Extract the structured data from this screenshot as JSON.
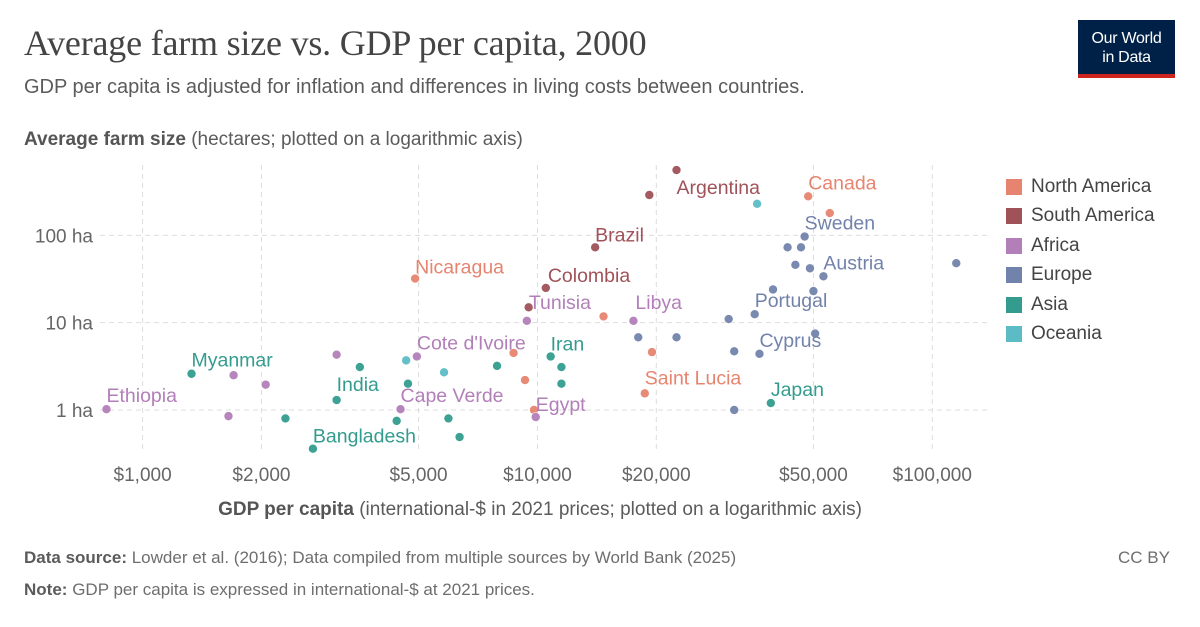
{
  "header": {
    "title": "Average farm size vs. GDP per capita, 2000",
    "subtitle": "GDP per capita is adjusted for inflation and differences in living costs between countries.",
    "logo_line1": "Our World",
    "logo_line2": "in Data"
  },
  "footer": {
    "source_label": "Data source:",
    "source_text": "Lowder et al. (2016); Data compiled from multiple sources by World Bank (2025)",
    "note_label": "Note:",
    "note_text": "GDP per capita is expressed in international-$ at 2021 prices.",
    "license": "CC BY"
  },
  "chart_data": {
    "type": "scatter",
    "title": "Average farm size vs. GDP per capita, 2000",
    "ylabel_bold": "Average farm size",
    "ylabel_rest": " (hectares; plotted on a logarithmic axis)",
    "xlabel_bold": "GDP per capita",
    "xlabel_rest": " (international-$ in 2021 prices; plotted on a logarithmic axis)",
    "x_scale": "log",
    "y_scale": "log",
    "xlim": [
      780,
      140000
    ],
    "ylim": [
      0.33,
      640
    ],
    "x_ticks": [
      {
        "value": 1000,
        "label": "$1,000"
      },
      {
        "value": 2000,
        "label": "$2,000"
      },
      {
        "value": 5000,
        "label": "$5,000"
      },
      {
        "value": 10000,
        "label": "$10,000"
      },
      {
        "value": 20000,
        "label": "$20,000"
      },
      {
        "value": 50000,
        "label": "$50,000"
      },
      {
        "value": 100000,
        "label": "$100,000"
      }
    ],
    "y_ticks": [
      {
        "value": 1,
        "label": "1 ha"
      },
      {
        "value": 10,
        "label": "10 ha"
      },
      {
        "value": 100,
        "label": "100 ha"
      }
    ],
    "grid": true,
    "legend_position": "right",
    "regions": [
      {
        "name": "North America",
        "color": "#e6846f"
      },
      {
        "name": "South America",
        "color": "#a05259"
      },
      {
        "name": "Africa",
        "color": "#b27fb9"
      },
      {
        "name": "Europe",
        "color": "#7283ab"
      },
      {
        "name": "Asia",
        "color": "#339c8e"
      },
      {
        "name": "Oceania",
        "color": "#5cbcc6"
      }
    ],
    "points": [
      {
        "label": "Argentina",
        "region": "South America",
        "x": 22500,
        "y": 560,
        "labeled": true,
        "anchor": "start",
        "dx": 0,
        "dy": 24
      },
      {
        "label": "",
        "region": "South America",
        "x": 19200,
        "y": 290
      },
      {
        "label": "Brazil",
        "region": "South America",
        "x": 14000,
        "y": 73,
        "labeled": true,
        "anchor": "start",
        "dx": 0,
        "dy": -6
      },
      {
        "label": "Colombia",
        "region": "South America",
        "x": 10500,
        "y": 25,
        "labeled": true,
        "anchor": "start",
        "dx": 2,
        "dy": -6
      },
      {
        "label": "",
        "region": "South America",
        "x": 9500,
        "y": 15
      },
      {
        "label": "Canada",
        "region": "North America",
        "x": 48500,
        "y": 280,
        "labeled": true,
        "anchor": "start",
        "dx": 0,
        "dy": -7
      },
      {
        "label": "",
        "region": "North America",
        "x": 55000,
        "y": 180
      },
      {
        "label": "Nicaragua",
        "region": "North America",
        "x": 4900,
        "y": 32,
        "labeled": true,
        "anchor": "start",
        "dx": 0,
        "dy": -5
      },
      {
        "label": "",
        "region": "North America",
        "x": 14700,
        "y": 11.8
      },
      {
        "label": "",
        "region": "North America",
        "x": 8700,
        "y": 4.5
      },
      {
        "label": "",
        "region": "North America",
        "x": 9300,
        "y": 2.2
      },
      {
        "label": "",
        "region": "North America",
        "x": 9800,
        "y": 1
      },
      {
        "label": "",
        "region": "North America",
        "x": 19500,
        "y": 4.6
      },
      {
        "label": "Saint Lucia",
        "region": "North America",
        "x": 18700,
        "y": 1.55,
        "labeled": true,
        "anchor": "start",
        "dx": 0,
        "dy": -9
      },
      {
        "label": "Sweden",
        "region": "Europe",
        "x": 47500,
        "y": 97,
        "labeled": true,
        "anchor": "start",
        "dx": 0,
        "dy": -7
      },
      {
        "label": "",
        "region": "Europe",
        "x": 43000,
        "y": 73
      },
      {
        "label": "",
        "region": "Europe",
        "x": 46500,
        "y": 73
      },
      {
        "label": "",
        "region": "Europe",
        "x": 45000,
        "y": 46
      },
      {
        "label": "",
        "region": "Europe",
        "x": 49000,
        "y": 42
      },
      {
        "label": "Austria",
        "region": "Europe",
        "x": 53000,
        "y": 34,
        "labeled": true,
        "anchor": "start",
        "dx": 0,
        "dy": -7
      },
      {
        "label": "",
        "region": "Europe",
        "x": 115000,
        "y": 48
      },
      {
        "label": "",
        "region": "Europe",
        "x": 39500,
        "y": 24
      },
      {
        "label": "",
        "region": "Europe",
        "x": 50000,
        "y": 23
      },
      {
        "label": "Portugal",
        "region": "Europe",
        "x": 35500,
        "y": 12.5,
        "labeled": true,
        "anchor": "start",
        "dx": 0,
        "dy": -7
      },
      {
        "label": "",
        "region": "Europe",
        "x": 30500,
        "y": 11
      },
      {
        "label": "",
        "region": "Europe",
        "x": 50500,
        "y": 7.5
      },
      {
        "label": "",
        "region": "Europe",
        "x": 18000,
        "y": 6.8
      },
      {
        "label": "",
        "region": "Europe",
        "x": 22500,
        "y": 6.8
      },
      {
        "label": "",
        "region": "Europe",
        "x": 31500,
        "y": 4.7
      },
      {
        "label": "Cyprus",
        "region": "Europe",
        "x": 36500,
        "y": 4.4,
        "labeled": true,
        "anchor": "start",
        "dx": 0,
        "dy": -7
      },
      {
        "label": "",
        "region": "Europe",
        "x": 31500,
        "y": 1
      },
      {
        "label": "",
        "region": "Oceania",
        "x": 36000,
        "y": 230
      },
      {
        "label": "",
        "region": "Oceania",
        "x": 4650,
        "y": 3.7
      },
      {
        "label": "",
        "region": "Oceania",
        "x": 5800,
        "y": 2.7
      },
      {
        "label": "Tunisia",
        "region": "Africa",
        "x": 9400,
        "y": 10.5,
        "labeled": true,
        "anchor": "start",
        "dx": 2,
        "dy": -12
      },
      {
        "label": "Libya",
        "region": "Africa",
        "x": 17500,
        "y": 10.5,
        "labeled": true,
        "anchor": "start",
        "dx": 2,
        "dy": -12
      },
      {
        "label": "Cote d'Ivoire",
        "region": "Africa",
        "x": 4950,
        "y": 4.1,
        "labeled": true,
        "anchor": "start",
        "dx": 0,
        "dy": -7
      },
      {
        "label": "",
        "region": "Africa",
        "x": 3100,
        "y": 4.3
      },
      {
        "label": "Ethiopia",
        "region": "Africa",
        "x": 810,
        "y": 1.02,
        "labeled": true,
        "anchor": "start",
        "dx": 0,
        "dy": -7
      },
      {
        "label": "",
        "region": "Africa",
        "x": 1700,
        "y": 2.5
      },
      {
        "label": "",
        "region": "Africa",
        "x": 2050,
        "y": 1.95
      },
      {
        "label": "",
        "region": "Africa",
        "x": 1650,
        "y": 0.85
      },
      {
        "label": "Cape Verde",
        "region": "Africa",
        "x": 4500,
        "y": 1.02,
        "labeled": true,
        "anchor": "start",
        "dx": 0,
        "dy": -7
      },
      {
        "label": "Egypt",
        "region": "Africa",
        "x": 9900,
        "y": 0.83,
        "labeled": true,
        "anchor": "start",
        "dx": 0,
        "dy": -6
      },
      {
        "label": "Myanmar",
        "region": "Asia",
        "x": 1330,
        "y": 2.6,
        "labeled": true,
        "anchor": "start",
        "dx": 0,
        "dy": -7
      },
      {
        "label": "India",
        "region": "Asia",
        "x": 3100,
        "y": 1.3,
        "labeled": true,
        "anchor": "start",
        "dx": 0,
        "dy": -9
      },
      {
        "label": "",
        "region": "Asia",
        "x": 3550,
        "y": 3.1
      },
      {
        "label": "",
        "region": "Asia",
        "x": 4700,
        "y": 2
      },
      {
        "label": "",
        "region": "Asia",
        "x": 2300,
        "y": 0.8
      },
      {
        "label": "",
        "region": "Asia",
        "x": 4400,
        "y": 0.75
      },
      {
        "label": "",
        "region": "Asia",
        "x": 5950,
        "y": 0.8
      },
      {
        "label": "",
        "region": "Asia",
        "x": 6350,
        "y": 0.49
      },
      {
        "label": "Bangladesh",
        "region": "Asia",
        "x": 2700,
        "y": 0.36,
        "labeled": true,
        "anchor": "start",
        "dx": 0,
        "dy": -6
      },
      {
        "label": "",
        "region": "Asia",
        "x": 7900,
        "y": 3.2
      },
      {
        "label": "Iran",
        "region": "Asia",
        "x": 10800,
        "y": 4.1,
        "labeled": true,
        "anchor": "start",
        "dx": 0,
        "dy": -6
      },
      {
        "label": "",
        "region": "Asia",
        "x": 11500,
        "y": 3.1
      },
      {
        "label": "",
        "region": "Asia",
        "x": 11500,
        "y": 2
      },
      {
        "label": "Japan",
        "region": "Asia",
        "x": 39000,
        "y": 1.2,
        "labeled": true,
        "anchor": "start",
        "dx": 0,
        "dy": -7
      }
    ]
  }
}
